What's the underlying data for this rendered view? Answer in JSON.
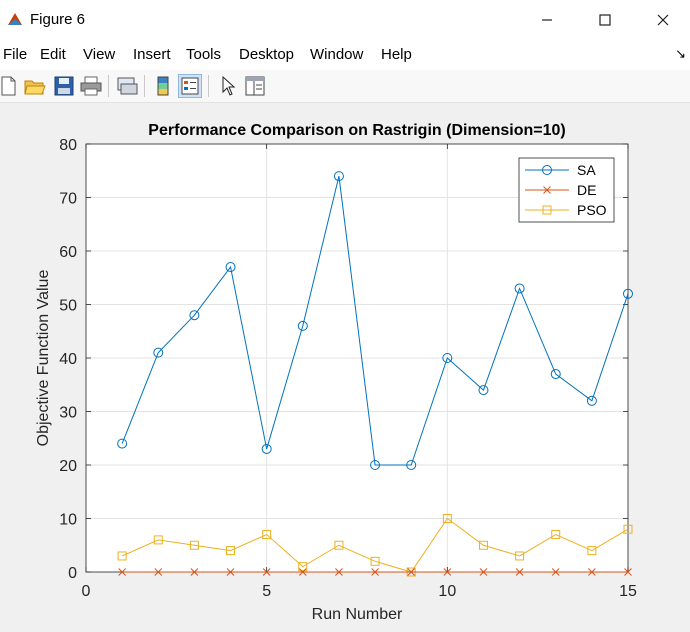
{
  "window": {
    "title": "Figure 6",
    "minimize_icon": "minimize-icon",
    "maximize_icon": "maximize-icon",
    "close_icon": "close-icon"
  },
  "menu": {
    "items": [
      "File",
      "Edit",
      "View",
      "Insert",
      "Tools",
      "Desktop",
      "Window",
      "Help"
    ],
    "overflow_icon": "chevron-icon"
  },
  "toolbar": {
    "icons": [
      "new-figure-icon",
      "open-file-icon",
      "save-icon",
      "print-icon",
      "link-plot-icon",
      "colorbar-icon",
      "legend-icon",
      "pointer-icon",
      "property-inspector-icon"
    ]
  },
  "colors": {
    "SA": "#0072bd",
    "DE": "#d95319",
    "PSO": "#edb120"
  },
  "chart_data": {
    "type": "line",
    "title": "Performance Comparison on Rastrigin (Dimension=10)",
    "xlabel": "Run Number",
    "ylabel": "Objective Function Value",
    "xlim": [
      0,
      15
    ],
    "ylim": [
      0,
      80
    ],
    "xticks": [
      0,
      5,
      10,
      15
    ],
    "yticks": [
      0,
      10,
      20,
      30,
      40,
      50,
      60,
      70,
      80
    ],
    "grid": true,
    "legend_position": "top-right",
    "x": [
      1,
      2,
      3,
      4,
      5,
      6,
      7,
      8,
      9,
      10,
      11,
      12,
      13,
      14,
      15
    ],
    "series": [
      {
        "name": "SA",
        "marker": "circle",
        "values": [
          24,
          41,
          48,
          57,
          23,
          46,
          74,
          20,
          20,
          40,
          34,
          53,
          37,
          32,
          52
        ]
      },
      {
        "name": "DE",
        "marker": "x",
        "values": [
          0,
          0,
          0,
          0,
          0,
          0,
          0,
          0,
          0,
          0,
          0,
          0,
          0,
          0,
          0
        ]
      },
      {
        "name": "PSO",
        "marker": "square",
        "values": [
          3,
          6,
          5,
          4,
          7,
          1,
          5,
          2,
          0,
          10,
          5,
          3,
          7,
          4,
          8
        ]
      }
    ]
  }
}
